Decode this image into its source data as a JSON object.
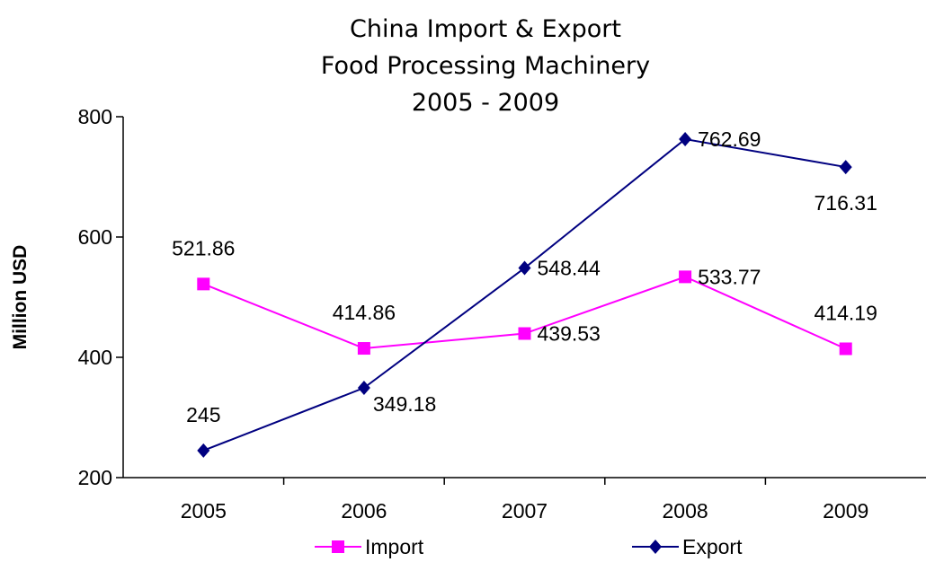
{
  "chart_data": {
    "type": "line",
    "title": [
      "China Import & Export",
      "Food Processing Machinery",
      "2005 - 2009"
    ],
    "xlabel": "",
    "ylabel": "Million USD",
    "categories": [
      "2005",
      "2006",
      "2007",
      "2008",
      "2009"
    ],
    "ylim": [
      200,
      800
    ],
    "yticks": [
      200,
      400,
      600,
      800
    ],
    "grid": false,
    "legend_position": "bottom",
    "series": [
      {
        "name": "Import",
        "values": [
          521.86,
          414.86,
          439.53,
          533.77,
          414.19
        ],
        "labels": [
          "521.86",
          "414.86",
          "439.53",
          "533.77",
          "414.19"
        ],
        "color": "#FF00FF",
        "marker": "square"
      },
      {
        "name": "Export",
        "values": [
          245,
          349.18,
          548.44,
          762.69,
          716.31
        ],
        "labels": [
          "245",
          "349.18",
          "548.44",
          "762.69",
          "716.31"
        ],
        "color": "#000080",
        "marker": "diamond"
      }
    ]
  }
}
